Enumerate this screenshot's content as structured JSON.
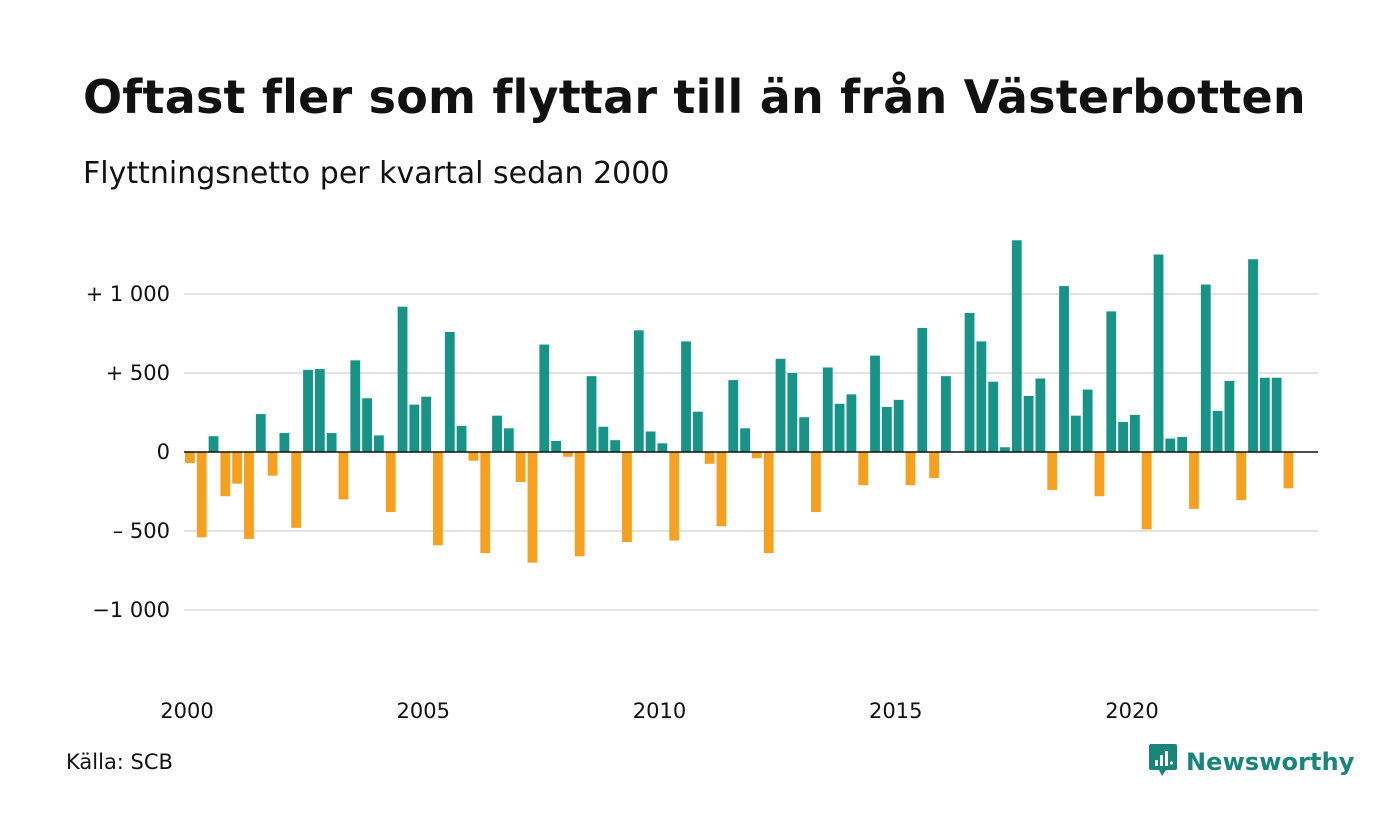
{
  "title": "Oftast fler som flyttar till än från Västerbotten",
  "subtitle": "Flyttningsnetto per kvartal sedan 2000",
  "source": "Källa: SCB",
  "brand": {
    "name": "Newsworthy",
    "icon": "newsworthy-logo-icon"
  },
  "colors": {
    "positive": "#179487",
    "negative": "#f5a11f",
    "grid": "#e2e2e2",
    "zero": "#111111",
    "brand": "#17857a"
  },
  "chart_data": {
    "type": "bar",
    "title": "Oftast fler som flyttar till än från Västerbotten",
    "subtitle": "Flyttningsnetto per kvartal sedan 2000",
    "xlabel": "",
    "ylabel": "",
    "ylim": [
      -1000,
      1350
    ],
    "grid": true,
    "legend": "none",
    "y_ticks": [
      {
        "value": 1000,
        "label": "+ 1 000"
      },
      {
        "value": 500,
        "label": "+   500"
      },
      {
        "value": 0,
        "label": "0"
      },
      {
        "value": -500,
        "label": "–  500"
      },
      {
        "value": -1000,
        "label": "−1 000"
      }
    ],
    "x_ticks": [
      {
        "year": 2000,
        "label": "2000"
      },
      {
        "year": 2005,
        "label": "2005"
      },
      {
        "year": 2010,
        "label": "2010"
      },
      {
        "year": 2015,
        "label": "2015"
      },
      {
        "year": 2020,
        "label": "2020"
      }
    ],
    "start_year": 2000,
    "categories": [
      "2000 K1",
      "2000 K2",
      "2000 K3",
      "2000 K4",
      "2001 K1",
      "2001 K2",
      "2001 K3",
      "2001 K4",
      "2002 K1",
      "2002 K2",
      "2002 K3",
      "2002 K4",
      "2003 K1",
      "2003 K2",
      "2003 K3",
      "2003 K4",
      "2004 K1",
      "2004 K2",
      "2004 K3",
      "2004 K4",
      "2005 K1",
      "2005 K2",
      "2005 K3",
      "2005 K4",
      "2006 K1",
      "2006 K2",
      "2006 K3",
      "2006 K4",
      "2007 K1",
      "2007 K2",
      "2007 K3",
      "2007 K4",
      "2008 K1",
      "2008 K2",
      "2008 K3",
      "2008 K4",
      "2009 K1",
      "2009 K2",
      "2009 K3",
      "2009 K4",
      "2010 K1",
      "2010 K2",
      "2010 K3",
      "2010 K4",
      "2011 K1",
      "2011 K2",
      "2011 K3",
      "2011 K4",
      "2012 K1",
      "2012 K2",
      "2012 K3",
      "2012 K4",
      "2013 K1",
      "2013 K2",
      "2013 K3",
      "2013 K4",
      "2014 K1",
      "2014 K2",
      "2014 K3",
      "2014 K4",
      "2015 K1",
      "2015 K2",
      "2015 K3",
      "2015 K4",
      "2016 K1",
      "2016 K2",
      "2016 K3",
      "2016 K4",
      "2017 K1",
      "2017 K2",
      "2017 K3",
      "2017 K4",
      "2018 K1",
      "2018 K2",
      "2018 K3",
      "2018 K4",
      "2019 K1",
      "2019 K2",
      "2019 K3",
      "2019 K4",
      "2020 K1",
      "2020 K2",
      "2020 K3",
      "2020 K4",
      "2021 K1",
      "2021 K2",
      "2021 K3",
      "2021 K4",
      "2022 K1",
      "2022 K2",
      "2022 K3",
      "2022 K4",
      "2023 K1",
      "2023 K2",
      "2023 K3",
      "2023 K4"
    ],
    "values": [
      -70,
      -540,
      100,
      -280,
      -200,
      -550,
      240,
      -150,
      120,
      -480,
      520,
      525,
      120,
      -300,
      580,
      340,
      105,
      -380,
      920,
      300,
      350,
      -590,
      760,
      165,
      -55,
      -640,
      230,
      150,
      -190,
      -700,
      680,
      70,
      -30,
      -660,
      480,
      160,
      75,
      -570,
      770,
      130,
      55,
      -560,
      700,
      255,
      -75,
      -470,
      455,
      150,
      -40,
      -640,
      590,
      500,
      220,
      -380,
      535,
      305,
      365,
      -210,
      610,
      285,
      330,
      -210,
      785,
      -165,
      480,
      0,
      880,
      700,
      445,
      30,
      1340,
      355,
      465,
      -240,
      1050,
      230,
      395,
      -280,
      890,
      190,
      235,
      -490,
      1250,
      85,
      95,
      -360,
      1060,
      260,
      450,
      -305,
      1220,
      470,
      470,
      -230,
      0,
      0
    ]
  }
}
